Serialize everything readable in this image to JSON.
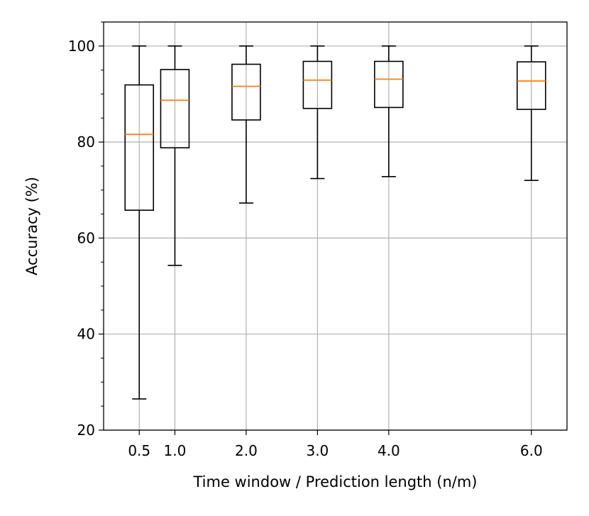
{
  "chart_data": {
    "type": "box",
    "xlabel": "Time window / Prediction length (n/m)",
    "ylabel": "Accuracy (%)",
    "xlim": [
      0.0,
      6.5
    ],
    "ylim": [
      20,
      105
    ],
    "grid": true,
    "x_tick_labels": [
      "0.5",
      "1.0",
      "2.0",
      "3.0",
      "4.0",
      "6.0"
    ],
    "y_ticks": [
      20,
      40,
      60,
      80,
      100
    ],
    "y_tick_labels": [
      "20",
      "40",
      "60",
      "80",
      "100"
    ],
    "y_minor_step": 5,
    "boxes": [
      {
        "x": 0.5,
        "whisker_low": 26.5,
        "q1": 65.8,
        "median": 81.6,
        "q3": 91.9,
        "whisker_high": 100
      },
      {
        "x": 1.0,
        "whisker_low": 54.3,
        "q1": 78.8,
        "median": 88.7,
        "q3": 95.1,
        "whisker_high": 100
      },
      {
        "x": 2.0,
        "whisker_low": 67.3,
        "q1": 84.6,
        "median": 91.6,
        "q3": 96.2,
        "whisker_high": 100
      },
      {
        "x": 3.0,
        "whisker_low": 72.4,
        "q1": 87.0,
        "median": 92.9,
        "q3": 96.8,
        "whisker_high": 100
      },
      {
        "x": 4.0,
        "whisker_low": 72.8,
        "q1": 87.2,
        "median": 93.1,
        "q3": 96.8,
        "whisker_high": 100
      },
      {
        "x": 6.0,
        "whisker_low": 72.0,
        "q1": 86.8,
        "median": 92.7,
        "q3": 96.7,
        "whisker_high": 100
      }
    ],
    "colors": {
      "box": "#000000",
      "median": "#ff7f0e",
      "grid": "#b0b0b0"
    }
  }
}
